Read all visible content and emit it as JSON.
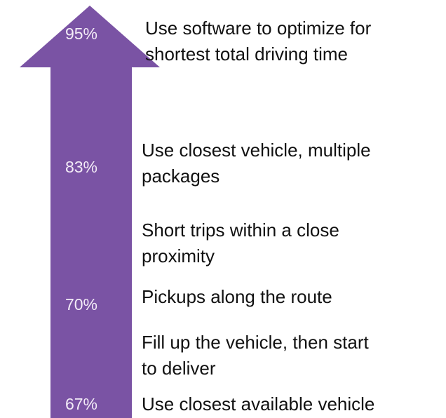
{
  "arrow": {
    "levels": [
      "95%",
      "83%",
      "70%",
      "67%"
    ]
  },
  "items": [
    {
      "lines": [
        "Use software to optimize for",
        "shortest total driving time"
      ]
    },
    {
      "lines": [
        "Use closest vehicle, multiple",
        "packages"
      ]
    },
    {
      "lines": [
        "Short trips within a close",
        "proximity"
      ]
    },
    {
      "lines": [
        "Pickups along the route"
      ]
    },
    {
      "lines": [
        "Fill up the vehicle, then start",
        "to deliver"
      ]
    },
    {
      "lines": [
        "Use closest available vehicle"
      ]
    }
  ]
}
